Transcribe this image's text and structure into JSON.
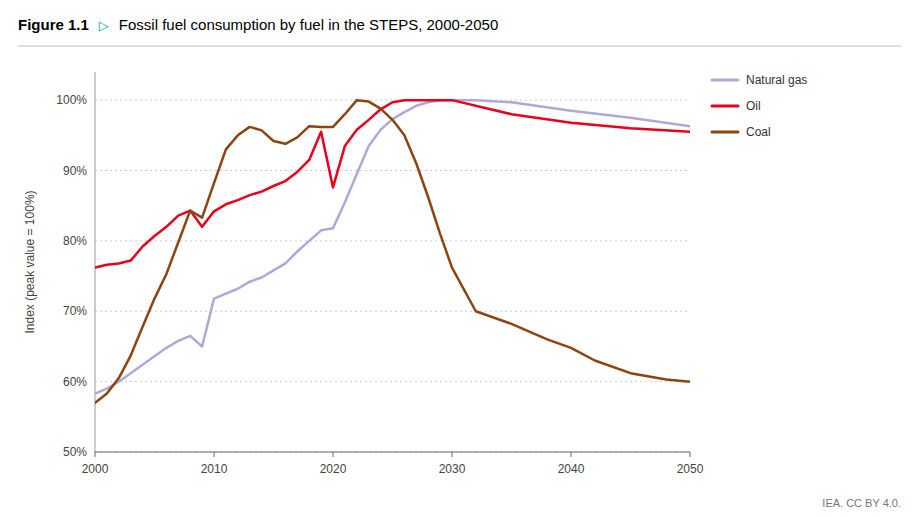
{
  "chart_data": {
    "type": "line",
    "title": "Fossil fuel consumption by fuel in the STEPS, 2000-2050",
    "annotations": [
      "Figure 1.1",
      "▷",
      "IEA. CC BY 4.0."
    ],
    "y_label": "Index (peak value = 100%)",
    "xlim": [
      2000,
      2050
    ],
    "ylim": [
      0.5,
      1.04
    ],
    "xticks": [
      2000,
      2010,
      2020,
      2030,
      2040,
      2050
    ],
    "yticks": [
      {
        "value": 0.5,
        "label": "50%"
      },
      {
        "value": 0.6,
        "label": "60%"
      },
      {
        "value": 0.7,
        "label": "70%"
      },
      {
        "value": 0.8,
        "label": "80%"
      },
      {
        "value": 0.9,
        "label": "90%"
      },
      {
        "value": 1.0,
        "label": "100%"
      }
    ],
    "grid": true,
    "legend": "right",
    "series": [
      {
        "name": "Natural gas",
        "color": "#b0a8d8",
        "x": [
          2000,
          2001,
          2002,
          2003,
          2004,
          2005,
          2006,
          2007,
          2008,
          2009,
          2010,
          2011,
          2012,
          2013,
          2014,
          2015,
          2016,
          2017,
          2018,
          2019,
          2020,
          2021,
          2022,
          2023,
          2024,
          2025,
          2026,
          2027,
          2028,
          2029,
          2030,
          2032,
          2035,
          2040,
          2045,
          2050
        ],
        "values": [
          0.583,
          0.59,
          0.6,
          0.612,
          0.624,
          0.636,
          0.648,
          0.658,
          0.665,
          0.65,
          0.718,
          0.725,
          0.732,
          0.742,
          0.748,
          0.758,
          0.768,
          0.785,
          0.8,
          0.815,
          0.818,
          0.855,
          0.895,
          0.935,
          0.958,
          0.973,
          0.983,
          0.992,
          0.997,
          1.0,
          1.0,
          1.0,
          0.997,
          0.985,
          0.975,
          0.963
        ]
      },
      {
        "name": "Oil",
        "color": "#e8001c",
        "x": [
          2000,
          2001,
          2002,
          2003,
          2004,
          2005,
          2006,
          2007,
          2008,
          2009,
          2010,
          2011,
          2012,
          2013,
          2014,
          2015,
          2016,
          2017,
          2018,
          2019,
          2020,
          2021,
          2022,
          2023,
          2024,
          2025,
          2026,
          2027,
          2028,
          2029,
          2030,
          2035,
          2040,
          2045,
          2050
        ],
        "values": [
          0.762,
          0.766,
          0.768,
          0.772,
          0.792,
          0.807,
          0.82,
          0.836,
          0.843,
          0.82,
          0.842,
          0.852,
          0.858,
          0.865,
          0.87,
          0.878,
          0.885,
          0.898,
          0.915,
          0.955,
          0.876,
          0.935,
          0.958,
          0.972,
          0.987,
          0.997,
          1.0,
          1.0,
          1.0,
          1.0,
          1.0,
          0.98,
          0.968,
          0.96,
          0.955
        ]
      },
      {
        "name": "Coal",
        "color": "#8B4513",
        "x": [
          2000,
          2001,
          2002,
          2003,
          2004,
          2005,
          2006,
          2007,
          2008,
          2009,
          2010,
          2011,
          2012,
          2013,
          2014,
          2015,
          2016,
          2017,
          2018,
          2019,
          2020,
          2021,
          2022,
          2023,
          2024,
          2025,
          2026,
          2027,
          2028,
          2029,
          2030,
          2032,
          2035,
          2038,
          2040,
          2042,
          2045,
          2048,
          2050
        ],
        "values": [
          0.57,
          0.583,
          0.605,
          0.637,
          0.678,
          0.718,
          0.753,
          0.798,
          0.843,
          0.833,
          0.882,
          0.93,
          0.95,
          0.962,
          0.957,
          0.942,
          0.938,
          0.947,
          0.963,
          0.962,
          0.962,
          0.98,
          1.0,
          0.998,
          0.988,
          0.972,
          0.95,
          0.91,
          0.862,
          0.81,
          0.762,
          0.7,
          0.682,
          0.66,
          0.648,
          0.63,
          0.612,
          0.603,
          0.6
        ]
      }
    ]
  }
}
